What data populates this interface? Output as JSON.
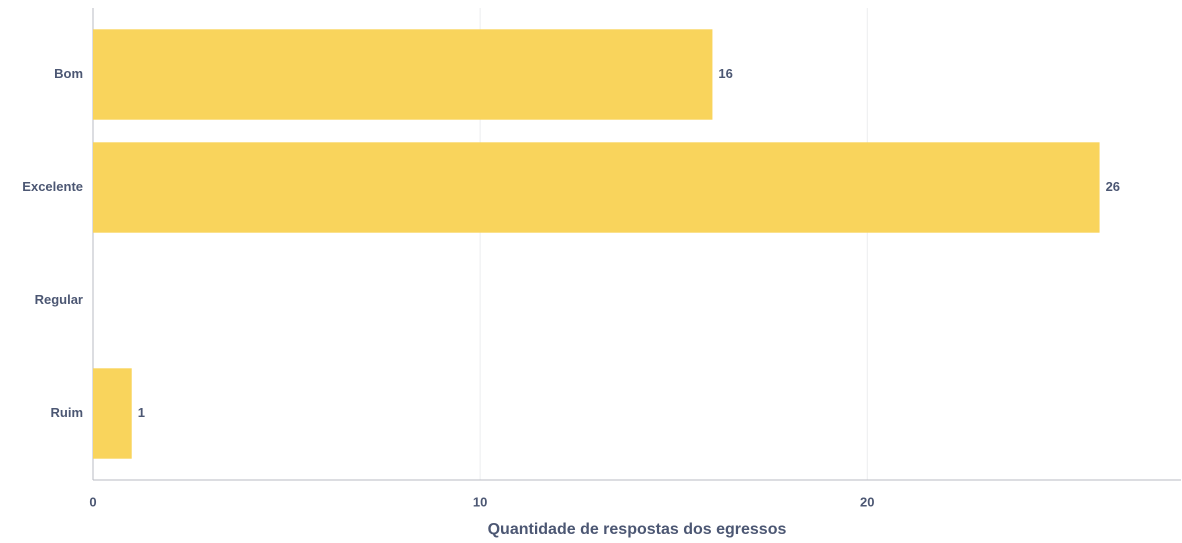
{
  "chart_data": {
    "type": "bar",
    "orientation": "horizontal",
    "categories": [
      "Bom",
      "Excelente",
      "Regular",
      "Ruim"
    ],
    "values": [
      16,
      26,
      null,
      1
    ],
    "color": "#F9D45C",
    "xlabel": "Quantidade de respostas dos egressos",
    "xlim": [
      0,
      28
    ],
    "xticks": [
      0,
      10,
      20
    ],
    "grid": true
  }
}
